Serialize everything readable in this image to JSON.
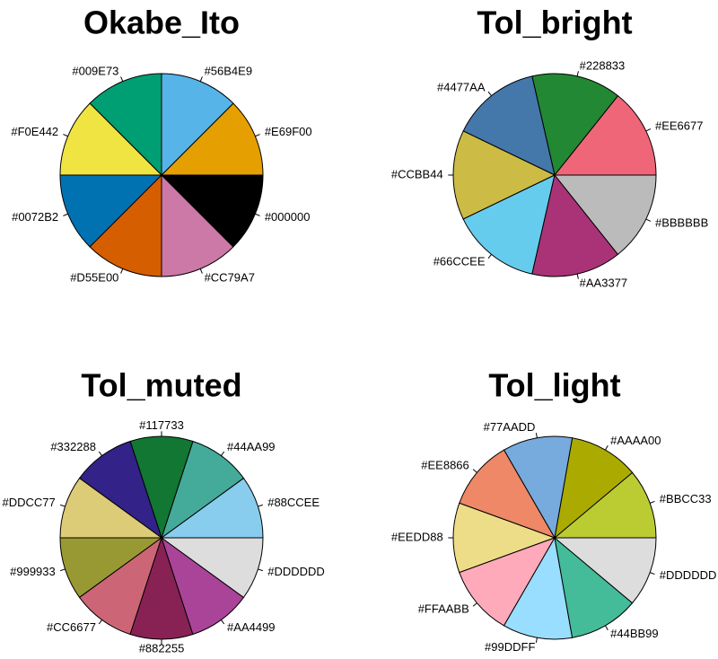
{
  "chart_data": [
    {
      "type": "pie",
      "title": "Okabe_Ito",
      "slices": [
        {
          "label": "#E69F00",
          "value": 1,
          "color": "#E69F00"
        },
        {
          "label": "#56B4E9",
          "value": 1,
          "color": "#56B4E9"
        },
        {
          "label": "#009E73",
          "value": 1,
          "color": "#009E73"
        },
        {
          "label": "#F0E442",
          "value": 1,
          "color": "#F0E442"
        },
        {
          "label": "#0072B2",
          "value": 1,
          "color": "#0072B2"
        },
        {
          "label": "#D55E00",
          "value": 1,
          "color": "#D55E00"
        },
        {
          "label": "#CC79A7",
          "value": 1,
          "color": "#CC79A7"
        },
        {
          "label": "#000000",
          "value": 1,
          "color": "#000000"
        }
      ]
    },
    {
      "type": "pie",
      "title": "Tol_bright",
      "slices": [
        {
          "label": "#EE6677",
          "value": 1,
          "color": "#EE6677"
        },
        {
          "label": "#228833",
          "value": 1,
          "color": "#228833"
        },
        {
          "label": "#4477AA",
          "value": 1,
          "color": "#4477AA"
        },
        {
          "label": "#CCBB44",
          "value": 1,
          "color": "#CCBB44"
        },
        {
          "label": "#66CCEE",
          "value": 1,
          "color": "#66CCEE"
        },
        {
          "label": "#AA3377",
          "value": 1,
          "color": "#AA3377"
        },
        {
          "label": "#BBBBBB",
          "value": 1,
          "color": "#BBBBBB"
        }
      ]
    },
    {
      "type": "pie",
      "title": "Tol_muted",
      "slices": [
        {
          "label": "#88CCEE",
          "value": 1,
          "color": "#88CCEE"
        },
        {
          "label": "#44AA99",
          "value": 1,
          "color": "#44AA99"
        },
        {
          "label": "#117733",
          "value": 1,
          "color": "#117733"
        },
        {
          "label": "#332288",
          "value": 1,
          "color": "#332288"
        },
        {
          "label": "#DDCC77",
          "value": 1,
          "color": "#DDCC77"
        },
        {
          "label": "#999933",
          "value": 1,
          "color": "#999933"
        },
        {
          "label": "#CC6677",
          "value": 1,
          "color": "#CC6677"
        },
        {
          "label": "#882255",
          "value": 1,
          "color": "#882255"
        },
        {
          "label": "#AA4499",
          "value": 1,
          "color": "#AA4499"
        },
        {
          "label": "#DDDDDD",
          "value": 1,
          "color": "#DDDDDD"
        }
      ]
    },
    {
      "type": "pie",
      "title": "Tol_light",
      "slices": [
        {
          "label": "#BBCC33",
          "value": 1,
          "color": "#BBCC33"
        },
        {
          "label": "#AAAA00",
          "value": 1,
          "color": "#AAAA00"
        },
        {
          "label": "#77AADD",
          "value": 1,
          "color": "#77AADD"
        },
        {
          "label": "#EE8866",
          "value": 1,
          "color": "#EE8866"
        },
        {
          "label": "#EEDD88",
          "value": 1,
          "color": "#EEDD88"
        },
        {
          "label": "#FFAABB",
          "value": 1,
          "color": "#FFAABB"
        },
        {
          "label": "#99DDFF",
          "value": 1,
          "color": "#99DDFF"
        },
        {
          "label": "#44BB99",
          "value": 1,
          "color": "#44BB99"
        },
        {
          "label": "#DDDDDD",
          "value": 1,
          "color": "#DDDDDD"
        }
      ]
    }
  ]
}
